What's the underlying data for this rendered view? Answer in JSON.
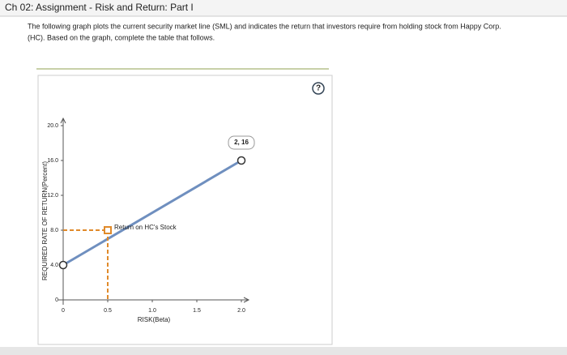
{
  "header": {
    "title": "Ch 02: Assignment - Risk and Return: Part I"
  },
  "instructions": [
    "The following graph plots the current security market line (SML) and indicates the return that investors require from holding stock from Happy Corp.",
    "(HC). Based on the graph, complete the table that follows."
  ],
  "help_icon": "?",
  "chart_data": {
    "type": "line",
    "xlabel": "RISK(Beta)",
    "ylabel": "REQUIRED RATE OF RETURN(Percent)",
    "xlim": [
      0,
      2
    ],
    "ylim": [
      0,
      20
    ],
    "xticks": [
      0,
      0.5,
      {
        "value": 1,
        "label": "1.0"
      },
      1.5,
      {
        "value": 2,
        "label": "2.0"
      }
    ],
    "yticks": [
      0,
      {
        "value": 4,
        "label": "4.0"
      },
      {
        "value": 8,
        "label": "8.0"
      },
      {
        "value": 12,
        "label": "12.0"
      },
      {
        "value": 16,
        "label": "16.0"
      },
      {
        "value": 20,
        "label": "20.0"
      }
    ],
    "series": [
      {
        "color": "#6f8fbf",
        "x": [
          0,
          2
        ],
        "values": [
          4,
          16
        ]
      },
      {
        "color": "#e08a2a",
        "x": [
          0.5
        ],
        "values": [
          8
        ]
      }
    ],
    "annotations": [
      "2, 16",
      "Return on HC's Stock"
    ]
  }
}
